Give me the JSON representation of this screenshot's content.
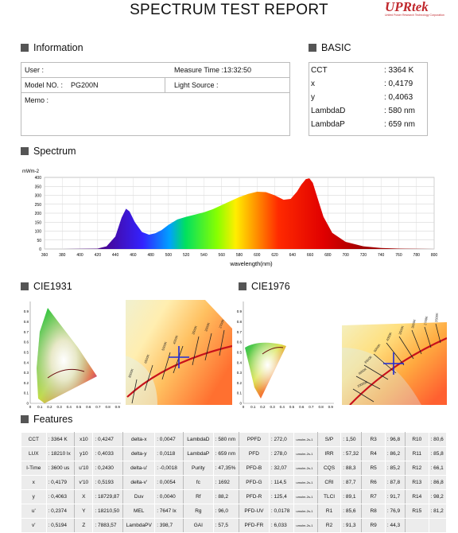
{
  "title": "SPECTRUM TEST REPORT",
  "logo": {
    "brand": "UPRtek",
    "tagline": "United Power Research Technology Corporation"
  },
  "sections": {
    "information": "Information",
    "basic": "BASIC",
    "spectrum": "Spectrum",
    "cie1931": "CIE1931",
    "cie1976": "CIE1976",
    "features": "Features"
  },
  "info": {
    "user_label": "User :",
    "measure_time_label": "Measure Time :",
    "measure_time": "13:32:50",
    "model_label": "Model NO. :",
    "model": "PG200N",
    "light_source_label": "Light Source :",
    "memo_label": "Memo :"
  },
  "basic": [
    {
      "k": "CCT",
      "v": ": 3364 K"
    },
    {
      "k": "x",
      "v": ": 0,4179"
    },
    {
      "k": "y",
      "v": ": 0,4063"
    },
    {
      "k": "LambdaD",
      "v": ": 580 nm"
    },
    {
      "k": "LambdaP",
      "v": ": 659 nm"
    }
  ],
  "chart_data": {
    "type": "area",
    "title": "",
    "ylabel": "mWm-2",
    "xlabel": "wavelength(nm)",
    "xlim": [
      360,
      800
    ],
    "ylim": [
      0,
      400
    ],
    "xticks": [
      360,
      380,
      400,
      420,
      440,
      460,
      480,
      500,
      520,
      540,
      560,
      580,
      600,
      620,
      640,
      660,
      680,
      700,
      720,
      740,
      760,
      780,
      800
    ],
    "yticks": [
      0,
      50,
      100,
      150,
      200,
      250,
      300,
      350,
      400
    ],
    "grid": true,
    "x": [
      380,
      420,
      430,
      440,
      447,
      452,
      456,
      462,
      470,
      478,
      485,
      492,
      500,
      510,
      520,
      530,
      540,
      550,
      560,
      570,
      580,
      590,
      600,
      610,
      620,
      630,
      638,
      645,
      650,
      655,
      659,
      663,
      668,
      675,
      685,
      700,
      720,
      740,
      760,
      780,
      800
    ],
    "y": [
      0,
      2,
      15,
      70,
      175,
      225,
      210,
      150,
      95,
      80,
      88,
      105,
      135,
      165,
      180,
      192,
      205,
      222,
      245,
      268,
      290,
      308,
      320,
      318,
      300,
      275,
      280,
      320,
      360,
      390,
      395,
      370,
      290,
      180,
      90,
      40,
      15,
      6,
      2,
      1,
      0
    ]
  },
  "features": [
    [
      "CCT",
      ": 3364 K",
      "x10",
      ": 0,4247",
      "delta-x",
      ": 0,0047",
      "LambdaD",
      ": 580 nm",
      "PPFD",
      ": 272,0",
      "umolm-2s-1",
      "S/P",
      ": 1,50",
      "R3",
      ": 96,8",
      "R10",
      ": 80,6"
    ],
    [
      "LUX",
      ": 18210 lx",
      "y10",
      ": 0,4033",
      "delta-y",
      ": 0,0118",
      "LambdaP",
      ": 659 nm",
      "PFD",
      ": 278,0",
      "umolm-2s-1",
      "IRR",
      ": 57,32",
      "R4",
      ": 86,2",
      "R11",
      ": 85,8"
    ],
    [
      "I-Time",
      ": 3600 us",
      "u'10",
      ": 0,2430",
      "delta-u'",
      ": -0,0018",
      "Purity",
      ": 47,35%",
      "PFD-B",
      ": 32,07",
      "umolm-2s-1",
      "CQS",
      ": 88,3",
      "R5",
      ": 85,2",
      "R12",
      ": 66,1"
    ],
    [
      "x",
      ": 0,4179",
      "v'10",
      ": 0,5193",
      "delta-v'",
      ": 0,0054",
      "fc",
      ": 1692",
      "PFD-G",
      ": 114,5",
      "umolm-2s-1",
      "CRI",
      ": 87,7",
      "R6",
      ": 87,8",
      "R13",
      ": 86,8"
    ],
    [
      "y",
      ": 0,4063",
      "X",
      ": 18729,87",
      "Duv",
      ": 0,0040",
      "Rf",
      ": 88,2",
      "PFD-R",
      ": 125,4",
      "umolm-2s-1",
      "TLCI",
      ": 89,1",
      "R7",
      ": 91,7",
      "R14",
      ": 98,2"
    ],
    [
      "u'",
      ": 0,2374",
      "Y",
      ": 18210,50",
      "MEL",
      ": 7647 lx",
      "Rg",
      ": 96,0",
      "PFD-UV",
      ": 0,0178",
      "umolm-2s-1",
      "R1",
      ": 85,6",
      "R8",
      ": 76,9",
      "R15",
      ": 81,2"
    ],
    [
      "v'",
      ": 0,5194",
      "Z",
      ": 7883,57",
      "LambdaPV",
      ": 398,7",
      "GAI",
      ": 57,5",
      "PFD-FR",
      ": 6,033",
      "umolm-2s-1",
      "R2",
      ": 91,3",
      "R9",
      ": 44,3",
      "",
      ""
    ]
  ],
  "cie1931_axis": {
    "ticks": [
      "0",
      "0.1",
      "0.2",
      "0.3",
      "0.4",
      "0.5",
      "0.6",
      "0.7",
      "0.8",
      "0.9"
    ]
  },
  "cie1976_axis": {
    "ticks": [
      "0",
      "0.1",
      "0.2",
      "0.3",
      "0.4",
      "0.5",
      "0.6",
      "0.7",
      "0.8",
      "0.9"
    ]
  },
  "zoom_cct_labels": [
    "10000K",
    "8000K",
    "6500K",
    "5000K",
    "4000K",
    "3500K",
    "3000K",
    "2700K",
    "2500K"
  ],
  "colors": {
    "planckian": "#d0021b",
    "marker": "#1e2bd6",
    "section_square": "#555555"
  }
}
